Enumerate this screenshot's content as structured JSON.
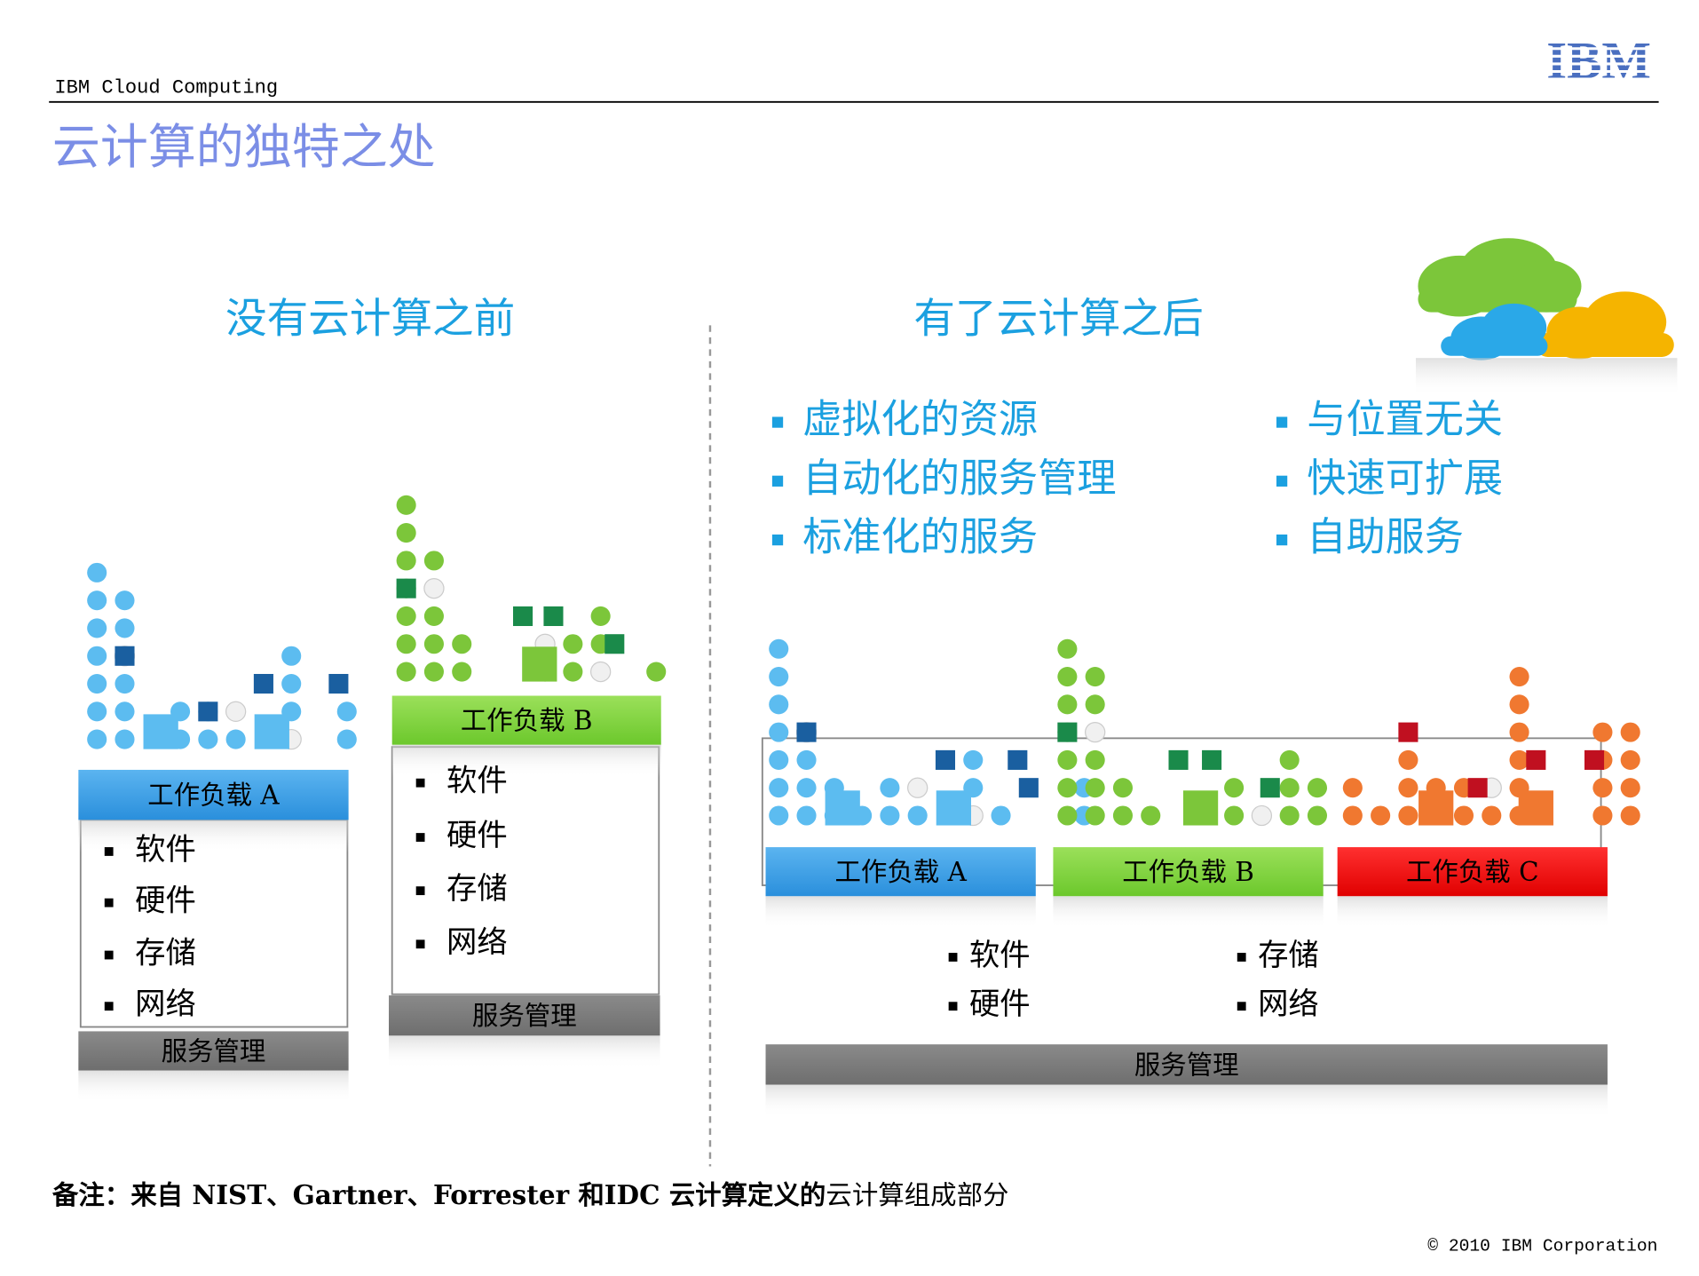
{
  "header": {
    "label": "IBM Cloud Computing",
    "logo": "IBM"
  },
  "title": "云计算的独特之处",
  "before": {
    "heading": "没有云计算之前",
    "workload_a": {
      "label": "工作负载 A",
      "items": [
        "软件",
        "硬件",
        "存储",
        "网络"
      ],
      "service": "服务管理"
    },
    "workload_b": {
      "label": "工作负载 B",
      "items": [
        "软件",
        "硬件",
        "存储",
        "网络"
      ],
      "service": "服务管理"
    }
  },
  "after": {
    "heading": "有了云计算之后",
    "features_left": [
      "虚拟化的资源",
      "自动化的服务管理",
      "标准化的服务"
    ],
    "features_right": [
      "与位置无关",
      "快速可扩展",
      "自助服务"
    ],
    "workloads": [
      "工作负载 A",
      "工作负载 B",
      "工作负载 C"
    ],
    "items_left": [
      "软件",
      "硬件"
    ],
    "items_right": [
      "存储",
      "网络"
    ],
    "service": "服务管理"
  },
  "footnote": {
    "bold": "备注：来自 NIST、Gartner、Forrester 和IDC 云计算定义的",
    "normal": "云计算组成部分"
  },
  "copyright": "© 2010 IBM Corporation"
}
